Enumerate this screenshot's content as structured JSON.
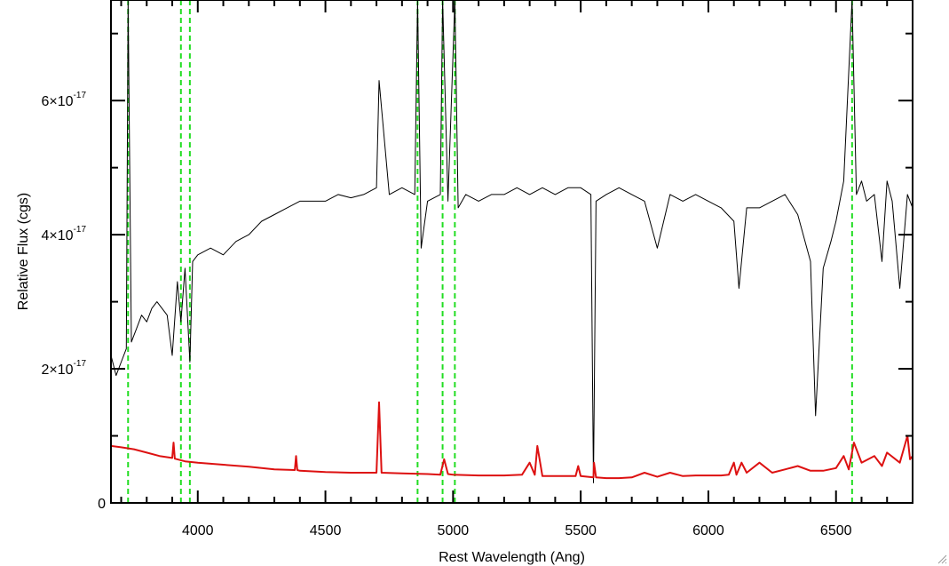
{
  "chart_data": {
    "type": "line",
    "xlabel": "Rest Wavelength (Ang)",
    "ylabel": "Relative Flux (cgs)",
    "xlim": [
      3660,
      6800
    ],
    "ylim": [
      0,
      7.5e-17
    ],
    "x_ticks": [
      {
        "value": 4000,
        "label": "4000"
      },
      {
        "value": 4500,
        "label": "4500"
      },
      {
        "value": 5000,
        "label": "5000"
      },
      {
        "value": 5500,
        "label": "5500"
      },
      {
        "value": 6000,
        "label": "6000"
      },
      {
        "value": 6500,
        "label": "6500"
      }
    ],
    "y_ticks": [
      {
        "value": 0,
        "mantissa": "0",
        "exponent": ""
      },
      {
        "value": 2e-17,
        "mantissa": "2×10",
        "exponent": "-17"
      },
      {
        "value": 4e-17,
        "mantissa": "4×10",
        "exponent": "-17"
      },
      {
        "value": 6e-17,
        "mantissa": "6×10",
        "exponent": "-17"
      }
    ],
    "x_minor_step": 100,
    "y_minor_step": 1e-17,
    "emission_lines": [
      3727,
      3934,
      3969,
      4861,
      4959,
      5007,
      6563
    ],
    "emission_line_color": "#22dd22",
    "series": [
      {
        "color": "#000000",
        "x": [
          3660,
          3680,
          3700,
          3720,
          3727,
          3740,
          3760,
          3780,
          3800,
          3820,
          3840,
          3860,
          3880,
          3900,
          3920,
          3934,
          3950,
          3969,
          3980,
          4000,
          4050,
          4100,
          4150,
          4200,
          4250,
          4300,
          4350,
          4400,
          4450,
          4500,
          4550,
          4600,
          4650,
          4700,
          4710,
          4750,
          4800,
          4850,
          4861,
          4875,
          4900,
          4950,
          4959,
          4980,
          5007,
          5020,
          5050,
          5100,
          5150,
          5200,
          5250,
          5300,
          5350,
          5400,
          5450,
          5500,
          5540,
          5550,
          5560,
          5600,
          5650,
          5700,
          5750,
          5800,
          5850,
          5900,
          5950,
          6000,
          6050,
          6100,
          6120,
          6150,
          6200,
          6250,
          6300,
          6350,
          6400,
          6420,
          6450,
          6480,
          6500,
          6530,
          6563,
          6580,
          6600,
          6620,
          6650,
          6680,
          6700,
          6720,
          6750,
          6780,
          6800
        ],
        "y": [
          2.2e-17,
          1.9e-17,
          2.1e-17,
          2.3e-17,
          7.5e-17,
          2.4e-17,
          2.6e-17,
          2.8e-17,
          2.7e-17,
          2.9e-17,
          3e-17,
          2.9e-17,
          2.8e-17,
          2.2e-17,
          3.3e-17,
          2.7e-17,
          3.5e-17,
          2.1e-17,
          3.6e-17,
          3.7e-17,
          3.8e-17,
          3.7e-17,
          3.9e-17,
          4e-17,
          4.2e-17,
          4.3e-17,
          4.4e-17,
          4.5e-17,
          4.5e-17,
          4.5e-17,
          4.6e-17,
          4.55e-17,
          4.6e-17,
          4.7e-17,
          6.3e-17,
          4.6e-17,
          4.7e-17,
          4.6e-17,
          7.5e-17,
          3.8e-17,
          4.5e-17,
          4.6e-17,
          7.5e-17,
          4.5e-17,
          7.5e-17,
          4.4e-17,
          4.6e-17,
          4.5e-17,
          4.6e-17,
          4.6e-17,
          4.7e-17,
          4.6e-17,
          4.7e-17,
          4.6e-17,
          4.7e-17,
          4.7e-17,
          4.6e-17,
          3e-18,
          4.5e-17,
          4.6e-17,
          4.7e-17,
          4.6e-17,
          4.5e-17,
          3.8e-17,
          4.6e-17,
          4.5e-17,
          4.6e-17,
          4.5e-17,
          4.4e-17,
          4.2e-17,
          3.2e-17,
          4.4e-17,
          4.4e-17,
          4.5e-17,
          4.6e-17,
          4.3e-17,
          3.6e-17,
          1.3e-17,
          3.5e-17,
          3.9e-17,
          4.2e-17,
          4.8e-17,
          7.5e-17,
          4.6e-17,
          4.8e-17,
          4.5e-17,
          4.6e-17,
          3.6e-17,
          4.8e-17,
          4.5e-17,
          3.2e-17,
          4.6e-17,
          4.4e-17
        ]
      },
      {
        "color": "#dd1111",
        "x": [
          3660,
          3700,
          3750,
          3800,
          3850,
          3900,
          3905,
          3910,
          3950,
          4000,
          4100,
          4200,
          4300,
          4380,
          4385,
          4390,
          4400,
          4500,
          4600,
          4700,
          4710,
          4720,
          4800,
          4900,
          4950,
          4965,
          4980,
          5000,
          5100,
          5200,
          5270,
          5300,
          5320,
          5330,
          5350,
          5400,
          5480,
          5490,
          5500,
          5550,
          5552,
          5560,
          5600,
          5650,
          5700,
          5750,
          5800,
          5850,
          5900,
          5950,
          6000,
          6050,
          6080,
          6100,
          6110,
          6130,
          6150,
          6200,
          6250,
          6300,
          6350,
          6400,
          6450,
          6500,
          6530,
          6550,
          6570,
          6600,
          6650,
          6680,
          6700,
          6750,
          6780,
          6790,
          6800
        ],
        "y": [
          8.5e-18,
          8.3e-18,
          8e-18,
          7.5e-18,
          7e-18,
          6.7e-18,
          9e-18,
          6.6e-18,
          6.2e-18,
          6e-18,
          5.7e-18,
          5.4e-18,
          5e-18,
          4.9e-18,
          7e-18,
          4.9e-18,
          4.8e-18,
          4.6e-18,
          4.5e-18,
          4.5e-18,
          1.5e-17,
          4.5e-18,
          4.4e-18,
          4.3e-18,
          4.2e-18,
          6.5e-18,
          4.3e-18,
          4.2e-18,
          4.1e-18,
          4.1e-18,
          4.2e-18,
          6e-18,
          4.2e-18,
          8.5e-18,
          4e-18,
          4e-18,
          4e-18,
          5.5e-18,
          4e-18,
          3.8e-18,
          6e-18,
          3.8e-18,
          3.7e-18,
          3.7e-18,
          3.8e-18,
          4.5e-18,
          3.9e-18,
          4.5e-18,
          4e-18,
          4.1e-18,
          4.1e-18,
          4.1e-18,
          4.2e-18,
          6e-18,
          4.2e-18,
          6e-18,
          4.5e-18,
          6e-18,
          4.5e-18,
          5e-18,
          5.5e-18,
          4.8e-18,
          4.8e-18,
          5.2e-18,
          7e-18,
          5e-18,
          9e-18,
          6e-18,
          7e-18,
          5.5e-18,
          7.5e-18,
          6e-18,
          1e-17,
          6.5e-18,
          7e-18
        ]
      }
    ]
  }
}
